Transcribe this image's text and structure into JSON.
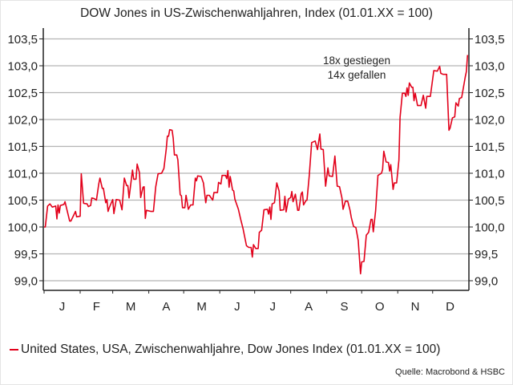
{
  "chart_data": {
    "type": "line",
    "title": "DOW Jones in US-Zwischenwahljahren, Index (01.01.XX = 100)",
    "xlabel": "",
    "ylabel": "",
    "x_unit": "day of year",
    "x_tick_labels": [
      "J",
      "F",
      "M",
      "A",
      "M",
      "J",
      "J",
      "A",
      "S",
      "O",
      "N",
      "D"
    ],
    "y_tick_labels": [
      "103,5",
      "103,0",
      "102,5",
      "102,0",
      "101,5",
      "101,0",
      "100,5",
      "100,0",
      "99,5",
      "99,0"
    ],
    "y_ticks": [
      103.5,
      103.0,
      102.5,
      102.0,
      101.5,
      101.0,
      100.5,
      100.0,
      99.5,
      99.0
    ],
    "ylim": [
      99.0,
      103.5
    ],
    "y_axis_both_sides": true,
    "grid": "horizontal",
    "legend_position": "bottom-left",
    "annotations": [
      "18x gestiegen",
      "14x gefallen"
    ],
    "source": "Quelle: Macrobond & HSBC",
    "series": [
      {
        "name": "United States, USA, Zwischenwahljahre, Dow Jones Index (01.01.XX = 100)",
        "color": "#e2001a",
        "x": [
          0,
          1,
          3,
          5,
          7,
          10,
          11,
          12,
          13,
          14,
          17,
          18,
          22,
          23,
          25,
          27,
          28,
          31,
          32,
          34,
          37,
          38,
          40,
          41,
          43,
          45,
          47,
          48,
          50,
          51,
          53,
          54,
          55,
          56,
          59,
          60,
          62,
          65,
          67,
          69,
          71,
          72,
          73,
          76,
          77,
          79,
          80,
          82,
          83,
          85,
          86,
          87,
          88,
          92,
          94,
          96,
          98,
          101,
          103,
          105,
          106,
          107,
          108,
          110,
          111,
          112,
          114,
          115,
          117,
          118,
          119,
          121,
          122,
          124,
          126,
          128,
          130,
          131,
          132,
          135,
          137,
          139,
          140,
          142,
          145,
          146,
          149,
          150,
          152,
          153,
          156,
          157,
          158,
          159,
          160,
          162,
          163,
          164,
          167,
          169,
          171,
          174,
          176,
          178,
          179,
          180,
          182,
          184,
          185,
          187,
          189,
          192,
          193,
          194,
          195,
          196,
          198,
          200,
          202,
          203,
          206,
          207,
          208,
          210,
          212,
          213,
          214,
          216,
          218,
          219,
          221,
          222,
          223,
          225,
          226,
          228,
          230,
          233,
          235,
          237,
          238,
          240,
          242,
          244,
          245,
          248,
          250,
          252,
          254,
          256,
          257,
          259,
          261,
          263,
          264,
          266,
          268,
          270,
          272,
          273,
          275,
          277,
          279,
          281,
          282,
          283,
          285,
          287,
          290,
          291,
          292,
          294,
          296,
          297,
          298,
          300,
          301,
          303,
          305,
          306,
          308,
          310,
          311,
          312,
          313,
          314,
          316,
          317,
          318,
          319,
          321,
          324,
          326,
          328,
          329,
          332,
          335,
          338,
          340,
          341,
          343,
          346,
          348,
          349,
          351,
          353,
          354,
          356,
          357,
          359,
          362,
          363,
          364
        ],
        "y": [
          100.0,
          100.0,
          100.39,
          100.43,
          100.37,
          100.39,
          100.15,
          100.41,
          100.26,
          100.4,
          100.42,
          100.47,
          100.11,
          100.11,
          100.2,
          100.29,
          100.19,
          100.2,
          100.99,
          100.44,
          100.43,
          100.38,
          100.4,
          100.54,
          100.53,
          100.5,
          100.8,
          100.91,
          100.72,
          100.72,
          100.45,
          100.51,
          100.29,
          100.36,
          100.51,
          100.25,
          100.51,
          100.5,
          100.32,
          100.91,
          100.77,
          100.77,
          100.54,
          101.06,
          100.89,
          100.89,
          101.17,
          101.01,
          100.55,
          100.74,
          100.75,
          100.16,
          100.31,
          100.29,
          100.29,
          100.75,
          100.99,
          101.0,
          101.09,
          101.45,
          101.69,
          101.69,
          101.81,
          101.8,
          101.65,
          101.34,
          101.34,
          101.25,
          100.6,
          100.58,
          100.36,
          100.36,
          100.59,
          100.33,
          100.41,
          100.41,
          100.91,
          100.86,
          100.95,
          100.94,
          100.82,
          100.45,
          100.59,
          100.59,
          100.5,
          100.64,
          100.64,
          100.83,
          100.8,
          100.96,
          100.96,
          100.9,
          101.05,
          100.74,
          100.94,
          100.69,
          100.67,
          100.52,
          100.33,
          100.14,
          99.97,
          99.65,
          99.62,
          99.62,
          99.44,
          99.67,
          99.6,
          99.6,
          99.9,
          99.94,
          100.32,
          100.33,
          100.24,
          100.37,
          100.14,
          100.43,
          100.45,
          100.82,
          100.67,
          100.31,
          100.32,
          100.57,
          100.28,
          100.52,
          100.55,
          100.66,
          100.47,
          100.61,
          100.31,
          100.31,
          100.62,
          100.65,
          100.41,
          100.49,
          100.5,
          100.97,
          101.57,
          101.6,
          101.44,
          101.73,
          101.45,
          101.44,
          100.76,
          101.1,
          100.95,
          100.94,
          101.32,
          100.76,
          100.75,
          100.54,
          100.33,
          100.48,
          100.48,
          100.31,
          100.18,
          100.01,
          99.99,
          99.75,
          99.13,
          99.35,
          99.36,
          99.85,
          99.9,
          100.14,
          100.14,
          99.91,
          100.3,
          100.96,
          101.0,
          101.07,
          101.41,
          101.21,
          101.2,
          101.04,
          101.16,
          100.7,
          100.82,
          100.82,
          101.25,
          102.04,
          102.49,
          102.49,
          102.43,
          102.59,
          102.45,
          102.68,
          102.6,
          102.6,
          102.35,
          102.49,
          102.26,
          102.26,
          102.45,
          102.21,
          102.43,
          102.43,
          102.91,
          102.9,
          102.99,
          102.86,
          102.84,
          102.84,
          101.8,
          101.84,
          102.03,
          102.05,
          102.31,
          102.25,
          102.39,
          102.41,
          102.79,
          102.89,
          103.2
        ]
      }
    ]
  }
}
